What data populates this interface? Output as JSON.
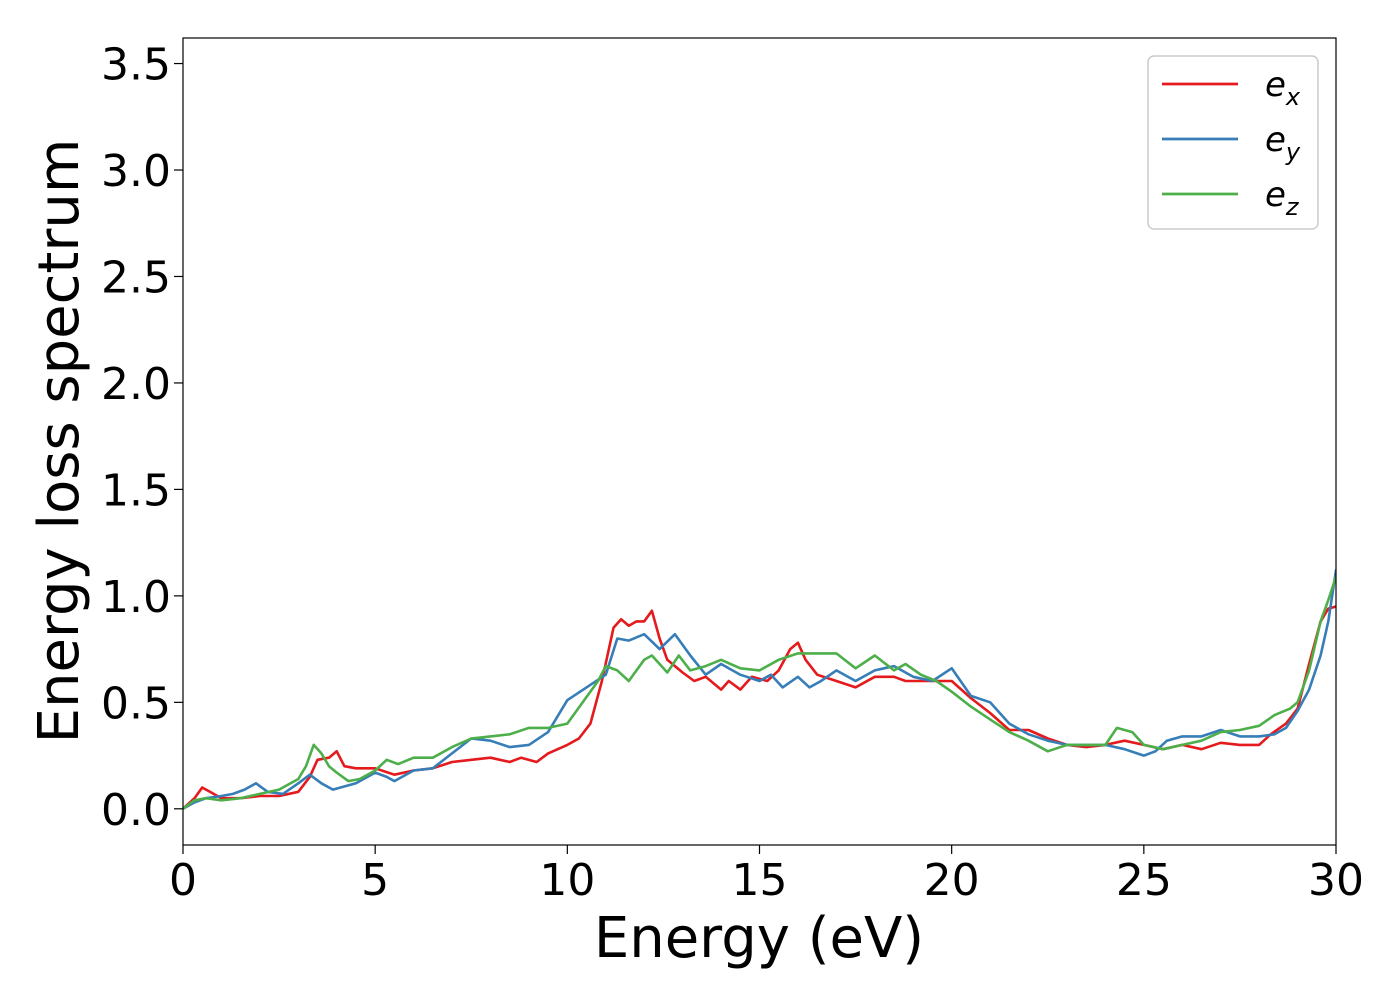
{
  "chart_data": {
    "type": "line",
    "title": "",
    "xlabel": "Energy (eV)",
    "ylabel": "Energy loss spectrum",
    "xlim": [
      0,
      30
    ],
    "ylim": [
      -0.17,
      3.62
    ],
    "xticks": [
      0,
      5,
      10,
      15,
      20,
      25,
      30
    ],
    "yticks": [
      0.0,
      0.5,
      1.0,
      1.5,
      2.0,
      2.5,
      3.0,
      3.5
    ],
    "xtick_labels": [
      "0",
      "5",
      "10",
      "15",
      "20",
      "25",
      "30"
    ],
    "ytick_labels": [
      "0.0",
      "0.5",
      "1.0",
      "1.5",
      "2.0",
      "2.5",
      "3.0",
      "3.5"
    ],
    "grid": false,
    "legend_position": "top-right",
    "series": [
      {
        "name": "e_x",
        "label_base": "e",
        "label_sub": "x",
        "color": "#e41a1c",
        "points": [
          [
            0,
            0
          ],
          [
            0.3,
            0.05
          ],
          [
            0.5,
            0.1
          ],
          [
            0.7,
            0.08
          ],
          [
            1.0,
            0.05
          ],
          [
            1.5,
            0.05
          ],
          [
            2.0,
            0.06
          ],
          [
            2.5,
            0.06
          ],
          [
            3.0,
            0.08
          ],
          [
            3.3,
            0.15
          ],
          [
            3.5,
            0.23
          ],
          [
            3.8,
            0.24
          ],
          [
            4.0,
            0.27
          ],
          [
            4.2,
            0.2
          ],
          [
            4.5,
            0.19
          ],
          [
            5.0,
            0.19
          ],
          [
            5.5,
            0.16
          ],
          [
            6.0,
            0.18
          ],
          [
            6.5,
            0.19
          ],
          [
            7.0,
            0.22
          ],
          [
            7.5,
            0.23
          ],
          [
            8.0,
            0.24
          ],
          [
            8.5,
            0.22
          ],
          [
            8.8,
            0.24
          ],
          [
            9.2,
            0.22
          ],
          [
            9.5,
            0.26
          ],
          [
            10.0,
            0.3
          ],
          [
            10.3,
            0.33
          ],
          [
            10.6,
            0.4
          ],
          [
            10.9,
            0.6
          ],
          [
            11.2,
            0.85
          ],
          [
            11.4,
            0.89
          ],
          [
            11.6,
            0.86
          ],
          [
            11.8,
            0.88
          ],
          [
            12.0,
            0.88
          ],
          [
            12.2,
            0.93
          ],
          [
            12.4,
            0.8
          ],
          [
            12.6,
            0.7
          ],
          [
            13.0,
            0.64
          ],
          [
            13.3,
            0.6
          ],
          [
            13.6,
            0.62
          ],
          [
            14.0,
            0.56
          ],
          [
            14.2,
            0.6
          ],
          [
            14.5,
            0.56
          ],
          [
            14.8,
            0.62
          ],
          [
            15.2,
            0.6
          ],
          [
            15.5,
            0.65
          ],
          [
            15.8,
            0.75
          ],
          [
            16.0,
            0.78
          ],
          [
            16.2,
            0.7
          ],
          [
            16.5,
            0.63
          ],
          [
            17.0,
            0.6
          ],
          [
            17.5,
            0.57
          ],
          [
            18.0,
            0.62
          ],
          [
            18.5,
            0.62
          ],
          [
            18.8,
            0.6
          ],
          [
            19.2,
            0.6
          ],
          [
            19.6,
            0.6
          ],
          [
            20.0,
            0.6
          ],
          [
            20.5,
            0.52
          ],
          [
            21.0,
            0.45
          ],
          [
            21.5,
            0.37
          ],
          [
            22.0,
            0.37
          ],
          [
            22.5,
            0.33
          ],
          [
            23.0,
            0.3
          ],
          [
            23.5,
            0.29
          ],
          [
            24.0,
            0.3
          ],
          [
            24.5,
            0.32
          ],
          [
            25.0,
            0.3
          ],
          [
            25.5,
            0.28
          ],
          [
            26.0,
            0.3
          ],
          [
            26.5,
            0.28
          ],
          [
            27.0,
            0.31
          ],
          [
            27.5,
            0.3
          ],
          [
            28.0,
            0.3
          ],
          [
            28.3,
            0.35
          ],
          [
            28.7,
            0.4
          ],
          [
            29.0,
            0.47
          ],
          [
            29.3,
            0.68
          ],
          [
            29.6,
            0.88
          ],
          [
            29.8,
            0.94
          ],
          [
            30.0,
            0.95
          ]
        ]
      },
      {
        "name": "e_y",
        "label_base": "e",
        "label_sub": "y",
        "color": "#377eb8",
        "points": [
          [
            0,
            0
          ],
          [
            0.3,
            0.03
          ],
          [
            0.6,
            0.05
          ],
          [
            1.0,
            0.06
          ],
          [
            1.3,
            0.07
          ],
          [
            1.6,
            0.09
          ],
          [
            1.9,
            0.12
          ],
          [
            2.2,
            0.08
          ],
          [
            2.6,
            0.07
          ],
          [
            3.0,
            0.12
          ],
          [
            3.3,
            0.16
          ],
          [
            3.6,
            0.12
          ],
          [
            3.9,
            0.09
          ],
          [
            4.5,
            0.12
          ],
          [
            5.0,
            0.17
          ],
          [
            5.3,
            0.15
          ],
          [
            5.5,
            0.13
          ],
          [
            6.0,
            0.18
          ],
          [
            6.5,
            0.19
          ],
          [
            7.0,
            0.26
          ],
          [
            7.5,
            0.33
          ],
          [
            8.0,
            0.32
          ],
          [
            8.5,
            0.29
          ],
          [
            9.0,
            0.3
          ],
          [
            9.5,
            0.36
          ],
          [
            10.0,
            0.51
          ],
          [
            10.5,
            0.57
          ],
          [
            11.0,
            0.63
          ],
          [
            11.3,
            0.8
          ],
          [
            11.6,
            0.79
          ],
          [
            12.0,
            0.82
          ],
          [
            12.4,
            0.75
          ],
          [
            12.8,
            0.82
          ],
          [
            13.2,
            0.72
          ],
          [
            13.6,
            0.63
          ],
          [
            14.0,
            0.68
          ],
          [
            14.5,
            0.63
          ],
          [
            15.0,
            0.6
          ],
          [
            15.3,
            0.63
          ],
          [
            15.6,
            0.57
          ],
          [
            16.0,
            0.62
          ],
          [
            16.3,
            0.57
          ],
          [
            16.6,
            0.6
          ],
          [
            17.0,
            0.65
          ],
          [
            17.5,
            0.6
          ],
          [
            18.0,
            0.65
          ],
          [
            18.5,
            0.67
          ],
          [
            19.0,
            0.62
          ],
          [
            19.5,
            0.6
          ],
          [
            20.0,
            0.66
          ],
          [
            20.5,
            0.53
          ],
          [
            21.0,
            0.5
          ],
          [
            21.5,
            0.4
          ],
          [
            22.0,
            0.35
          ],
          [
            22.5,
            0.32
          ],
          [
            23.0,
            0.3
          ],
          [
            23.5,
            0.3
          ],
          [
            24.0,
            0.3
          ],
          [
            24.5,
            0.28
          ],
          [
            25.0,
            0.25
          ],
          [
            25.3,
            0.27
          ],
          [
            25.6,
            0.32
          ],
          [
            26.0,
            0.34
          ],
          [
            26.5,
            0.34
          ],
          [
            27.0,
            0.37
          ],
          [
            27.5,
            0.34
          ],
          [
            28.0,
            0.34
          ],
          [
            28.4,
            0.35
          ],
          [
            28.7,
            0.38
          ],
          [
            29.0,
            0.46
          ],
          [
            29.3,
            0.56
          ],
          [
            29.6,
            0.72
          ],
          [
            29.8,
            0.88
          ],
          [
            30.0,
            1.12
          ]
        ]
      },
      {
        "name": "e_z",
        "label_base": "e",
        "label_sub": "z",
        "color": "#4daf4a",
        "points": [
          [
            0,
            0
          ],
          [
            0.3,
            0.04
          ],
          [
            0.6,
            0.05
          ],
          [
            1.0,
            0.04
          ],
          [
            1.5,
            0.05
          ],
          [
            2.0,
            0.07
          ],
          [
            2.5,
            0.09
          ],
          [
            3.0,
            0.14
          ],
          [
            3.2,
            0.2
          ],
          [
            3.4,
            0.3
          ],
          [
            3.6,
            0.26
          ],
          [
            3.8,
            0.2
          ],
          [
            4.0,
            0.17
          ],
          [
            4.3,
            0.13
          ],
          [
            4.6,
            0.14
          ],
          [
            5.0,
            0.18
          ],
          [
            5.3,
            0.23
          ],
          [
            5.6,
            0.21
          ],
          [
            6.0,
            0.24
          ],
          [
            6.5,
            0.24
          ],
          [
            7.0,
            0.29
          ],
          [
            7.5,
            0.33
          ],
          [
            8.0,
            0.34
          ],
          [
            8.5,
            0.35
          ],
          [
            9.0,
            0.38
          ],
          [
            9.5,
            0.38
          ],
          [
            10.0,
            0.4
          ],
          [
            10.4,
            0.5
          ],
          [
            10.8,
            0.6
          ],
          [
            11.0,
            0.67
          ],
          [
            11.3,
            0.65
          ],
          [
            11.6,
            0.6
          ],
          [
            12.0,
            0.7
          ],
          [
            12.2,
            0.72
          ],
          [
            12.6,
            0.64
          ],
          [
            12.9,
            0.72
          ],
          [
            13.2,
            0.65
          ],
          [
            13.6,
            0.67
          ],
          [
            14.0,
            0.7
          ],
          [
            14.5,
            0.66
          ],
          [
            15.0,
            0.65
          ],
          [
            15.5,
            0.7
          ],
          [
            16.0,
            0.73
          ],
          [
            16.5,
            0.73
          ],
          [
            17.0,
            0.73
          ],
          [
            17.5,
            0.66
          ],
          [
            18.0,
            0.72
          ],
          [
            18.5,
            0.65
          ],
          [
            18.8,
            0.68
          ],
          [
            19.2,
            0.63
          ],
          [
            19.6,
            0.6
          ],
          [
            20.0,
            0.55
          ],
          [
            20.5,
            0.48
          ],
          [
            21.0,
            0.42
          ],
          [
            21.5,
            0.36
          ],
          [
            22.0,
            0.32
          ],
          [
            22.5,
            0.27
          ],
          [
            23.0,
            0.3
          ],
          [
            23.5,
            0.3
          ],
          [
            24.0,
            0.3
          ],
          [
            24.3,
            0.38
          ],
          [
            24.7,
            0.36
          ],
          [
            25.0,
            0.3
          ],
          [
            25.5,
            0.28
          ],
          [
            26.0,
            0.3
          ],
          [
            26.5,
            0.32
          ],
          [
            27.0,
            0.36
          ],
          [
            27.5,
            0.37
          ],
          [
            28.0,
            0.39
          ],
          [
            28.4,
            0.44
          ],
          [
            28.8,
            0.47
          ],
          [
            29.0,
            0.5
          ],
          [
            29.3,
            0.65
          ],
          [
            29.6,
            0.88
          ],
          [
            29.8,
            0.98
          ],
          [
            30.0,
            1.09
          ]
        ]
      }
    ]
  }
}
